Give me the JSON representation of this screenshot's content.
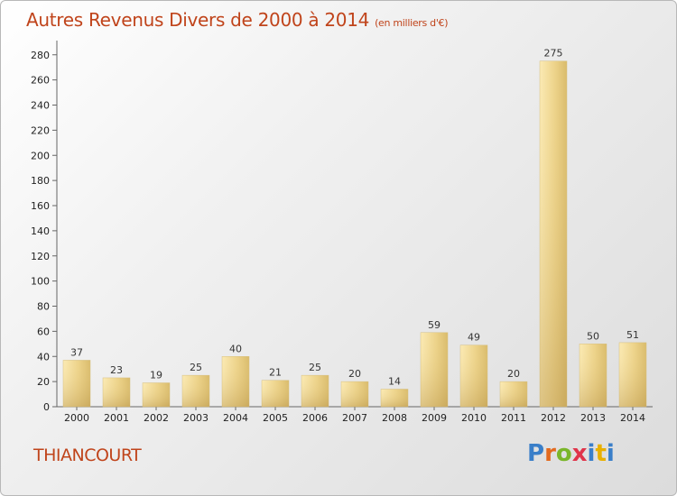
{
  "title": "Autres Revenus Divers de 2000 à 2014",
  "subtitle": "(en milliers d'€)",
  "commune": "THIANCOURT",
  "logo": {
    "text": "Proxiti",
    "colors": [
      "#3a7fc9",
      "#e36a1e",
      "#7ab62a",
      "#e0344a",
      "#3a7fc9",
      "#e8b000",
      "#3a7fc9"
    ]
  },
  "colors": {
    "bar_light": "#f3dc97",
    "bar_dark": "#c9a85a",
    "axis": "#555555",
    "title": "#c0441b"
  },
  "chart_data": {
    "type": "bar",
    "categories": [
      "2000",
      "2001",
      "2002",
      "2003",
      "2004",
      "2005",
      "2006",
      "2007",
      "2008",
      "2009",
      "2010",
      "2011",
      "2012",
      "2013",
      "2014"
    ],
    "values": [
      37,
      23,
      19,
      25,
      40,
      21,
      25,
      20,
      14,
      59,
      49,
      20,
      275,
      50,
      51
    ],
    "yticks": [
      0,
      20,
      40,
      60,
      80,
      100,
      120,
      140,
      160,
      180,
      200,
      220,
      240,
      260,
      280
    ],
    "ylim": [
      0,
      287
    ],
    "grid": false,
    "legend": "none"
  }
}
